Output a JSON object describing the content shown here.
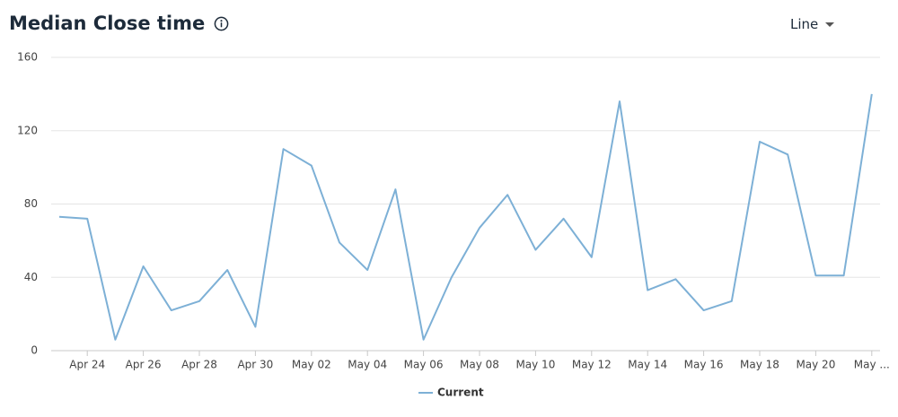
{
  "chart_data": {
    "type": "line",
    "title": "Median Close time",
    "control": "Line",
    "categories": [
      null,
      "Apr 24",
      null,
      "Apr 26",
      null,
      "Apr 28",
      null,
      "Apr 30",
      null,
      "May 02",
      null,
      "May 04",
      null,
      "May 06",
      null,
      "May 08",
      null,
      "May 10",
      null,
      "May 12",
      null,
      "May 14",
      null,
      "May 16",
      null,
      "May 18",
      null,
      "May 20",
      null,
      "May ..."
    ],
    "series": [
      {
        "name": "Current",
        "color": "#7db0d6",
        "values": [
          73,
          72,
          6,
          46,
          22,
          27,
          44,
          13,
          110,
          101,
          59,
          44,
          88,
          6,
          40,
          67,
          85,
          55,
          72,
          51,
          136,
          33,
          39,
          22,
          27,
          114,
          107,
          41,
          41,
          140
        ]
      }
    ],
    "ylim": [
      0,
      160
    ],
    "yticks": [
      0,
      40,
      80,
      120,
      160
    ],
    "grid": true
  }
}
